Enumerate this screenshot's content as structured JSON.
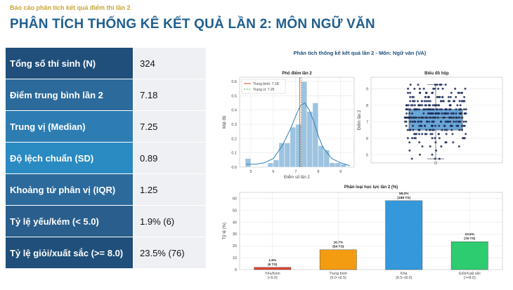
{
  "header": {
    "kicker": "Báo cáo phân tích kết quả điểm thi lần 2",
    "title": "PHÂN TÍCH THỐNG KÊ KẾT QUẢ LẦN 2: MÔN NGỮ VĂN"
  },
  "stats": [
    {
      "label": "Tổng số thí sinh (N)",
      "value": "324"
    },
    {
      "label": "Điểm trung bình lần 2",
      "value": "7.18"
    },
    {
      "label": "Trung vị (Median)",
      "value": "7.25"
    },
    {
      "label": "Độ lệch chuẩn (SD)",
      "value": "0.89"
    },
    {
      "label": "Khoảng tứ phân vị (IQR)",
      "value": "1.25"
    },
    {
      "label": "Tỷ lệ yếu/kém (< 5.0)",
      "value": "1.9% (6)"
    },
    {
      "label": "Tỷ lệ giỏi/xuất sắc (>= 8.0)",
      "value": "23.5% (76)"
    }
  ],
  "colors": {
    "row_colors": [
      "#1f4f7a",
      "#2c6a9c",
      "#2d7db3",
      "#2a8ac2",
      "#2c6a9c",
      "#2a5e8c",
      "#1f4f7a"
    ]
  },
  "figure": {
    "title": "Phân tích thống kê kết quả lần 2 - Môn: Ngữ văn (VA)"
  },
  "chart_data": [
    {
      "type": "bar",
      "title": "Phổ điểm lần 2",
      "xlabel": "Điểm số lần 2",
      "ylabel": "Mật độ",
      "xlim": [
        4.5,
        9.6
      ],
      "ylim": [
        0,
        0.63
      ],
      "xticks": [
        "5",
        "6",
        "7",
        "8",
        "9"
      ],
      "yticks": [
        "0.0",
        "0.1",
        "0.2",
        "0.3",
        "0.4",
        "0.5",
        "0.6"
      ],
      "bin_edges": [
        4.75,
        5.0,
        5.25,
        5.5,
        5.75,
        6.0,
        6.25,
        6.5,
        6.75,
        7.0,
        7.25,
        7.5,
        7.75,
        8.0,
        8.25,
        8.5,
        8.75,
        9.0,
        9.25
      ],
      "density": [
        0.06,
        0.0,
        0.0,
        0.0,
        0.03,
        0.05,
        0.17,
        0.17,
        0.28,
        0.3,
        0.6,
        0.39,
        0.45,
        0.15,
        0.12,
        0.03,
        0.03,
        0.02
      ],
      "kde": {
        "x": [
          4.8,
          5.2,
          5.6,
          6.0,
          6.4,
          6.8,
          7.0,
          7.2,
          7.4,
          7.6,
          7.8,
          8.0,
          8.2,
          8.6,
          9.0,
          9.4
        ],
        "y": [
          0.02,
          0.02,
          0.03,
          0.06,
          0.15,
          0.28,
          0.36,
          0.43,
          0.45,
          0.4,
          0.32,
          0.22,
          0.14,
          0.06,
          0.03,
          0.01
        ]
      },
      "lines": [
        {
          "name": "Trung bình: 7.18",
          "x": 7.18,
          "color": "#e0442b",
          "style": "solid"
        },
        {
          "name": "Trung vị: 7.25",
          "x": 7.25,
          "color": "#4caf50",
          "style": "dashed"
        }
      ],
      "legend": "top-left"
    },
    {
      "type": "scatter",
      "title": "Biểu đồ hộp",
      "ylabel": "Điểm lần 2",
      "ylim": [
        4.5,
        9.7
      ],
      "yticks": [
        "5",
        "6",
        "7",
        "8",
        "9"
      ],
      "box": {
        "q1": 6.5,
        "median": 7.25,
        "q3": 7.75,
        "whisker_low": 4.75,
        "whisker_high": 9.25,
        "outliers": [
          4.5
        ]
      },
      "points_note": "324 jittered points"
    },
    {
      "type": "bar",
      "title": "Phân loại học lực lần 2 (%)",
      "ylabel": "Tỷ lệ (%)",
      "ylim": [
        0,
        65
      ],
      "yticks": [
        "0",
        "10",
        "20",
        "30",
        "40",
        "50",
        "60"
      ],
      "categories": [
        [
          "Yếu/Kém",
          "(<5.0)"
        ],
        [
          "Trung bình",
          "(5.0-<6.5)"
        ],
        [
          "Khá",
          "(6.5-<8.0)"
        ],
        [
          "Giỏi/Xuất sắc",
          "(>=8.0)"
        ]
      ],
      "values": [
        1.9,
        16.7,
        58.0,
        23.5
      ],
      "data_labels": [
        [
          "1.9%",
          "(6 TS)"
        ],
        [
          "16.7%",
          "(54 TS)"
        ],
        [
          "58.0%",
          "(188 TS)"
        ],
        [
          "23.5%",
          "(76 TS)"
        ]
      ],
      "colors": [
        "#e0442b",
        "#f39c12",
        "#3498db",
        "#2ecc71"
      ]
    }
  ]
}
